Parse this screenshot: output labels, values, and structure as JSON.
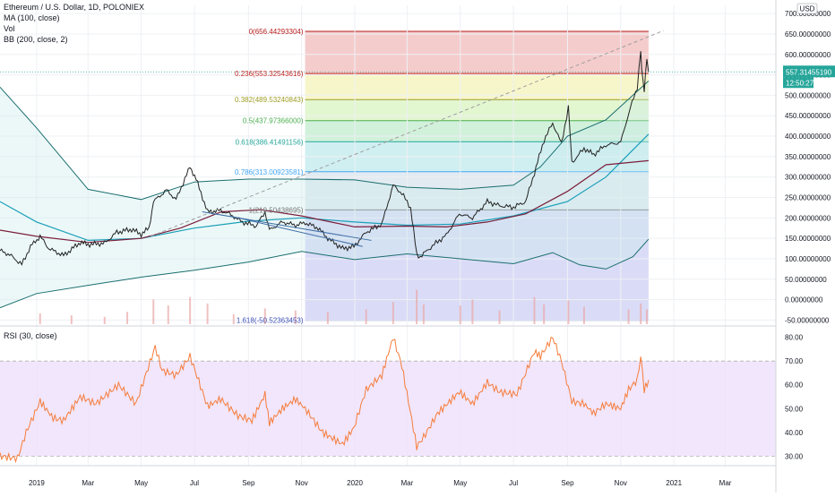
{
  "header": {
    "title": "Ethereum / U.S. Dollar, 1D, POLONIEX",
    "indicators": [
      "MA (100, close)",
      "Vol",
      "BB (200, close, 2)"
    ],
    "currency": "USD"
  },
  "rsi_panel": {
    "label": "RSI (30, close)"
  },
  "colors": {
    "price": "#222222",
    "ma": "#7b1e3a",
    "bb_basis": "#1a9fb8",
    "bb_band": "#1a6e6e",
    "bb_fill": "#c9ecec",
    "rsi_line": "#f57c3a",
    "rsi_band": "#ede0fb",
    "current_price_bg": "#26a69a",
    "grid": "#eef0f4",
    "fib_line": "#90a4ae"
  },
  "chart_data": [
    {
      "type": "line",
      "title": "Ethereum / U.S. Dollar, 1D, POLONIEX",
      "xlabel": "",
      "ylabel": "",
      "x_range": [
        "2018-11-20",
        "2021-04-28"
      ],
      "ylim": [
        -60,
        720
      ],
      "y_ticks": [
        "700.00000000",
        "650.00000000",
        "600.00000000",
        "550.00000000",
        "500.00000000",
        "450.00000000",
        "400.00000000",
        "350.00000000",
        "300.00000000",
        "250.00000000",
        "200.00000000",
        "150.00000000",
        "100.00000000",
        "50.00000000",
        "0.00000000",
        "-50.00000000"
      ],
      "x_ticks": [
        {
          "date": "2019-01-01",
          "label": "2019"
        },
        {
          "date": "2019-03-01",
          "label": "Mar"
        },
        {
          "date": "2019-05-01",
          "label": "May"
        },
        {
          "date": "2019-07-01",
          "label": "Jul"
        },
        {
          "date": "2019-09-01",
          "label": "Sep"
        },
        {
          "date": "2019-11-01",
          "label": "Nov"
        },
        {
          "date": "2020-01-01",
          "label": "2020"
        },
        {
          "date": "2020-03-01",
          "label": "Mar"
        },
        {
          "date": "2020-05-01",
          "label": "May"
        },
        {
          "date": "2020-07-01",
          "label": "Jul"
        },
        {
          "date": "2020-09-01",
          "label": "Sep"
        },
        {
          "date": "2020-11-01",
          "label": "Nov"
        },
        {
          "date": "2021-01-01",
          "label": "2021"
        },
        {
          "date": "2021-03-01",
          "label": "Mar"
        }
      ],
      "current_price": {
        "value": 557.31,
        "label": "557.31455190",
        "countdown": "12:50:27"
      },
      "price": [
        [
          "2018-11-20",
          120
        ],
        [
          "2018-12-01",
          110
        ],
        [
          "2018-12-15",
          86
        ],
        [
          "2018-12-25",
          130
        ],
        [
          "2019-01-05",
          155
        ],
        [
          "2019-01-15",
          125
        ],
        [
          "2019-02-01",
          108
        ],
        [
          "2019-02-20",
          140
        ],
        [
          "2019-03-01",
          135
        ],
        [
          "2019-03-20",
          138
        ],
        [
          "2019-04-03",
          165
        ],
        [
          "2019-04-20",
          172
        ],
        [
          "2019-05-01",
          160
        ],
        [
          "2019-05-10",
          175
        ],
        [
          "2019-05-15",
          240
        ],
        [
          "2019-05-30",
          268
        ],
        [
          "2019-06-10",
          245
        ],
        [
          "2019-06-26",
          325
        ],
        [
          "2019-07-03",
          295
        ],
        [
          "2019-07-16",
          215
        ],
        [
          "2019-07-31",
          218
        ],
        [
          "2019-08-10",
          210
        ],
        [
          "2019-08-25",
          190
        ],
        [
          "2019-09-10",
          180
        ],
        [
          "2019-09-20",
          215
        ],
        [
          "2019-09-25",
          170
        ],
        [
          "2019-10-10",
          190
        ],
        [
          "2019-10-25",
          182
        ],
        [
          "2019-11-05",
          188
        ],
        [
          "2019-11-20",
          175
        ],
        [
          "2019-12-01",
          150
        ],
        [
          "2019-12-18",
          125
        ],
        [
          "2019-12-31",
          130
        ],
        [
          "2020-01-14",
          165
        ],
        [
          "2020-02-01",
          185
        ],
        [
          "2020-02-14",
          280
        ],
        [
          "2020-02-24",
          260
        ],
        [
          "2020-03-05",
          225
        ],
        [
          "2020-03-12",
          110
        ],
        [
          "2020-03-16",
          105
        ],
        [
          "2020-04-01",
          135
        ],
        [
          "2020-04-15",
          158
        ],
        [
          "2020-04-30",
          210
        ],
        [
          "2020-05-15",
          200
        ],
        [
          "2020-06-01",
          240
        ],
        [
          "2020-06-15",
          230
        ],
        [
          "2020-07-01",
          226
        ],
        [
          "2020-07-15",
          240
        ],
        [
          "2020-07-25",
          310
        ],
        [
          "2020-08-05",
          390
        ],
        [
          "2020-08-15",
          432
        ],
        [
          "2020-08-25",
          382
        ],
        [
          "2020-09-02",
          470
        ],
        [
          "2020-09-06",
          335
        ],
        [
          "2020-09-20",
          370
        ],
        [
          "2020-10-01",
          355
        ],
        [
          "2020-10-15",
          378
        ],
        [
          "2020-11-01",
          385
        ],
        [
          "2020-11-10",
          455
        ],
        [
          "2020-11-20",
          520
        ],
        [
          "2020-11-24",
          610
        ],
        [
          "2020-11-25",
          560
        ],
        [
          "2020-11-28",
          510
        ],
        [
          "2020-12-01",
          595
        ],
        [
          "2020-12-03",
          557
        ]
      ],
      "series": [
        {
          "name": "MA (100, close)",
          "points": [
            [
              "2018-11-20",
              170
            ],
            [
              "2019-01-01",
              155
            ],
            [
              "2019-03-01",
              140
            ],
            [
              "2019-05-01",
              150
            ],
            [
              "2019-06-15",
              175
            ],
            [
              "2019-08-01",
              215
            ],
            [
              "2019-09-15",
              220
            ],
            [
              "2019-11-01",
              205
            ],
            [
              "2020-01-01",
              178
            ],
            [
              "2020-03-01",
              180
            ],
            [
              "2020-04-15",
              178
            ],
            [
              "2020-06-01",
              190
            ],
            [
              "2020-07-15",
              210
            ],
            [
              "2020-09-01",
              265
            ],
            [
              "2020-10-15",
              330
            ],
            [
              "2020-12-03",
              340
            ]
          ]
        },
        {
          "name": "BB basis",
          "points": [
            [
              "2018-11-20",
              240
            ],
            [
              "2019-01-01",
              190
            ],
            [
              "2019-03-01",
              145
            ],
            [
              "2019-05-01",
              150
            ],
            [
              "2019-07-01",
              175
            ],
            [
              "2019-09-01",
              192
            ],
            [
              "2019-11-01",
              200
            ],
            [
              "2020-01-01",
              190
            ],
            [
              "2020-03-01",
              182
            ],
            [
              "2020-05-01",
              185
            ],
            [
              "2020-07-01",
              205
            ],
            [
              "2020-09-01",
              240
            ],
            [
              "2020-10-15",
              300
            ],
            [
              "2020-12-03",
              405
            ]
          ]
        },
        {
          "name": "BB upper",
          "points": [
            [
              "2018-11-20",
              520
            ],
            [
              "2019-01-01",
              420
            ],
            [
              "2019-03-01",
              270
            ],
            [
              "2019-05-01",
              245
            ],
            [
              "2019-07-01",
              288
            ],
            [
              "2019-09-01",
              295
            ],
            [
              "2019-11-01",
              295
            ],
            [
              "2020-01-01",
              293
            ],
            [
              "2020-03-01",
              275
            ],
            [
              "2020-05-01",
              270
            ],
            [
              "2020-07-01",
              280
            ],
            [
              "2020-08-01",
              325
            ],
            [
              "2020-09-01",
              400
            ],
            [
              "2020-10-15",
              440
            ],
            [
              "2020-12-03",
              535
            ]
          ]
        },
        {
          "name": "BB lower",
          "points": [
            [
              "2018-11-20",
              -20
            ],
            [
              "2019-01-01",
              15
            ],
            [
              "2019-03-01",
              35
            ],
            [
              "2019-05-01",
              55
            ],
            [
              "2019-07-01",
              72
            ],
            [
              "2019-09-01",
              92
            ],
            [
              "2019-11-01",
              118
            ],
            [
              "2020-01-01",
              98
            ],
            [
              "2020-03-01",
              112
            ],
            [
              "2020-05-01",
              100
            ],
            [
              "2020-07-01",
              88
            ],
            [
              "2020-08-15",
              115
            ],
            [
              "2020-09-15",
              85
            ],
            [
              "2020-10-15",
              75
            ],
            [
              "2020-11-15",
              105
            ],
            [
              "2020-12-03",
              148
            ]
          ]
        }
      ],
      "fib_retracement": {
        "start": "2019-11-05",
        "end": "2020-12-03",
        "levels": [
          {
            "label": "0(656.44293304)",
            "value": 656.44,
            "color": "#f3c3c3",
            "line": "#b71c1c"
          },
          {
            "label": "0.236(553.32543616)",
            "value": 553.33,
            "color": "#f6f5c2",
            "line": "#c62828"
          },
          {
            "label": "0.382(489.53240843)",
            "value": 489.53,
            "color": "#ddf5c8",
            "line": "#9e9d24"
          },
          {
            "label": "0.5(437.97366000)",
            "value": 437.97,
            "color": "#c9efd5",
            "line": "#4caf50"
          },
          {
            "label": "0.618(386.41491156)",
            "value": 386.41,
            "color": "#c8ecef",
            "line": "#26a69a"
          },
          {
            "label": "0.786(313.00923581)",
            "value": 313.01,
            "color": "#dde7ee",
            "line": "#42a5f5"
          },
          {
            "label": "1(219.50438695)",
            "value": 219.5,
            "color": "#d3d6f6",
            "line": "#757575"
          },
          {
            "label": "1.618(-50.52363453)",
            "value": -50.52,
            "color": "#d3d6f6",
            "line": "#3f51b5"
          }
        ]
      },
      "trend_lines": [
        {
          "from": [
            "2019-05-12",
            155
          ],
          "to": [
            "2020-12-20",
            658
          ],
          "style": "dashed"
        },
        {
          "from": [
            "2019-07-10",
            215
          ],
          "to": [
            "2020-01-20",
            145
          ],
          "style": "solid"
        },
        {
          "from": [
            "2019-08-10",
            205
          ],
          "to": [
            "2020-01-10",
            130
          ],
          "style": "solid"
        }
      ],
      "volume": [
        [
          "2019-01-05",
          22
        ],
        [
          "2019-02-10",
          18
        ],
        [
          "2019-03-20",
          15
        ],
        [
          "2019-04-15",
          25
        ],
        [
          "2019-05-15",
          50
        ],
        [
          "2019-06-01",
          38
        ],
        [
          "2019-06-26",
          55
        ],
        [
          "2019-07-16",
          42
        ],
        [
          "2019-08-15",
          20
        ],
        [
          "2019-09-20",
          32
        ],
        [
          "2019-10-25",
          28
        ],
        [
          "2019-12-01",
          25
        ],
        [
          "2020-01-14",
          30
        ],
        [
          "2020-02-14",
          45
        ],
        [
          "2020-03-12",
          70
        ],
        [
          "2020-03-20",
          40
        ],
        [
          "2020-05-01",
          38
        ],
        [
          "2020-05-15",
          50
        ],
        [
          "2020-06-15",
          28
        ],
        [
          "2020-07-25",
          55
        ],
        [
          "2020-08-05",
          40
        ],
        [
          "2020-09-02",
          48
        ],
        [
          "2020-09-20",
          35
        ],
        [
          "2020-11-10",
          30
        ],
        [
          "2020-11-24",
          42
        ],
        [
          "2020-12-01",
          30
        ]
      ]
    },
    {
      "type": "line",
      "title": "RSI (30, close)",
      "ylim": [
        26,
        84
      ],
      "y_ticks": [
        "80.00",
        "70.00",
        "60.00",
        "50.00",
        "40.00",
        "30.00"
      ],
      "band": [
        30,
        70
      ],
      "values": [
        [
          "2018-11-20",
          30
        ],
        [
          "2018-12-10",
          29
        ],
        [
          "2018-12-20",
          40
        ],
        [
          "2019-01-05",
          53
        ],
        [
          "2019-01-20",
          46
        ],
        [
          "2019-02-01",
          45
        ],
        [
          "2019-02-20",
          55
        ],
        [
          "2019-03-10",
          52
        ],
        [
          "2019-04-05",
          60
        ],
        [
          "2019-04-25",
          52
        ],
        [
          "2019-05-17",
          76
        ],
        [
          "2019-05-25",
          66
        ],
        [
          "2019-06-10",
          64
        ],
        [
          "2019-06-26",
          72
        ],
        [
          "2019-07-16",
          51
        ],
        [
          "2019-07-31",
          54
        ],
        [
          "2019-08-20",
          47
        ],
        [
          "2019-09-05",
          45
        ],
        [
          "2019-09-20",
          56
        ],
        [
          "2019-09-25",
          44
        ],
        [
          "2019-10-10",
          50
        ],
        [
          "2019-10-25",
          54
        ],
        [
          "2019-11-05",
          50
        ],
        [
          "2019-11-25",
          40
        ],
        [
          "2019-12-18",
          35
        ],
        [
          "2019-12-31",
          42
        ],
        [
          "2020-01-14",
          58
        ],
        [
          "2020-02-01",
          64
        ],
        [
          "2020-02-14",
          80
        ],
        [
          "2020-02-24",
          68
        ],
        [
          "2020-03-12",
          34
        ],
        [
          "2020-03-20",
          38
        ],
        [
          "2020-04-05",
          48
        ],
        [
          "2020-04-30",
          57
        ],
        [
          "2020-05-15",
          52
        ],
        [
          "2020-06-01",
          61
        ],
        [
          "2020-06-15",
          57
        ],
        [
          "2020-07-05",
          56
        ],
        [
          "2020-07-25",
          74
        ],
        [
          "2020-08-01",
          72
        ],
        [
          "2020-08-15",
          80
        ],
        [
          "2020-08-25",
          70
        ],
        [
          "2020-09-06",
          53
        ],
        [
          "2020-09-20",
          52
        ],
        [
          "2020-10-01",
          48
        ],
        [
          "2020-10-15",
          52
        ],
        [
          "2020-11-01",
          50
        ],
        [
          "2020-11-10",
          58
        ],
        [
          "2020-11-20",
          62
        ],
        [
          "2020-11-24",
          72
        ],
        [
          "2020-11-28",
          58
        ],
        [
          "2020-12-03",
          62
        ]
      ]
    }
  ]
}
